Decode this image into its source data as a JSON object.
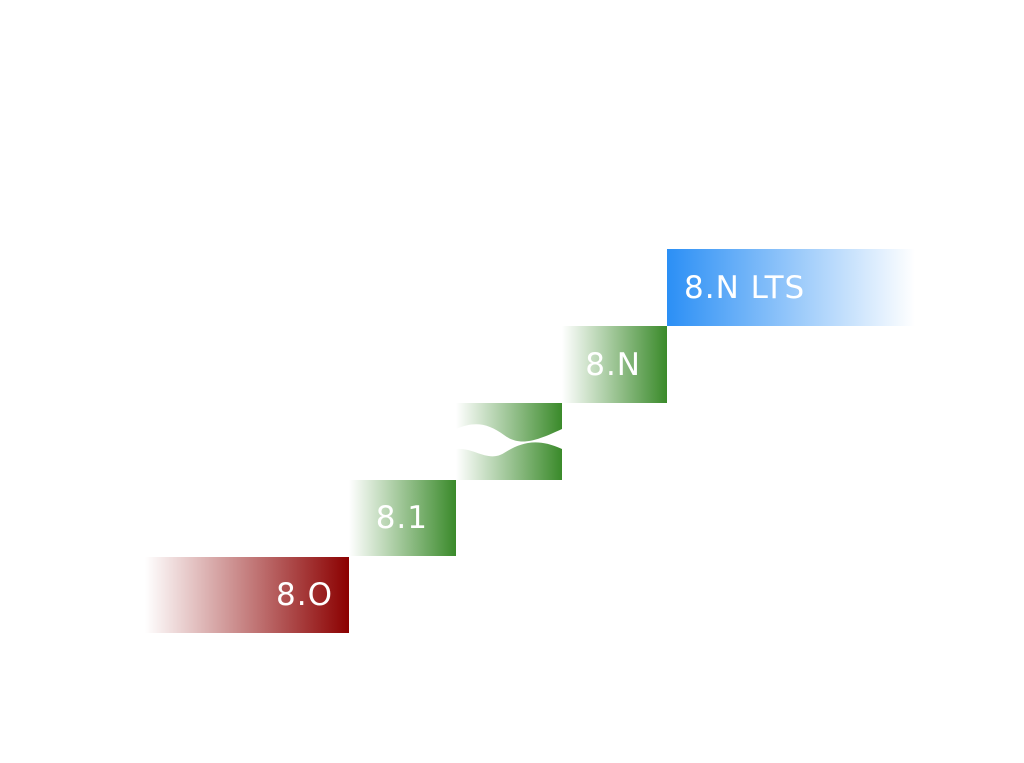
{
  "steps": [
    {
      "id": "8.0",
      "label": "8.O",
      "color_start": "#ffffff",
      "color_end": "#8b0000"
    },
    {
      "id": "8.1",
      "label": "8.1",
      "color_start": "#ffffff",
      "color_end": "#3a8a2a"
    },
    {
      "id": "gap",
      "label": "",
      "color_start": "#ffffff",
      "color_end": "#3a8a2a"
    },
    {
      "id": "8.N",
      "label": "8.N",
      "color_start": "#ffffff",
      "color_end": "#3a8a2a"
    },
    {
      "id": "8.N LTS",
      "label": "8.N LTS",
      "color_start": "#2b8ff5",
      "color_end": "#ffffff"
    }
  ],
  "colors": {
    "release_red": "#8b0000",
    "release_green": "#3a8a2a",
    "release_blue": "#2b8ff5",
    "background": "#ffffff"
  },
  "icons": {
    "gap_marker": "wavy-break-icon"
  }
}
